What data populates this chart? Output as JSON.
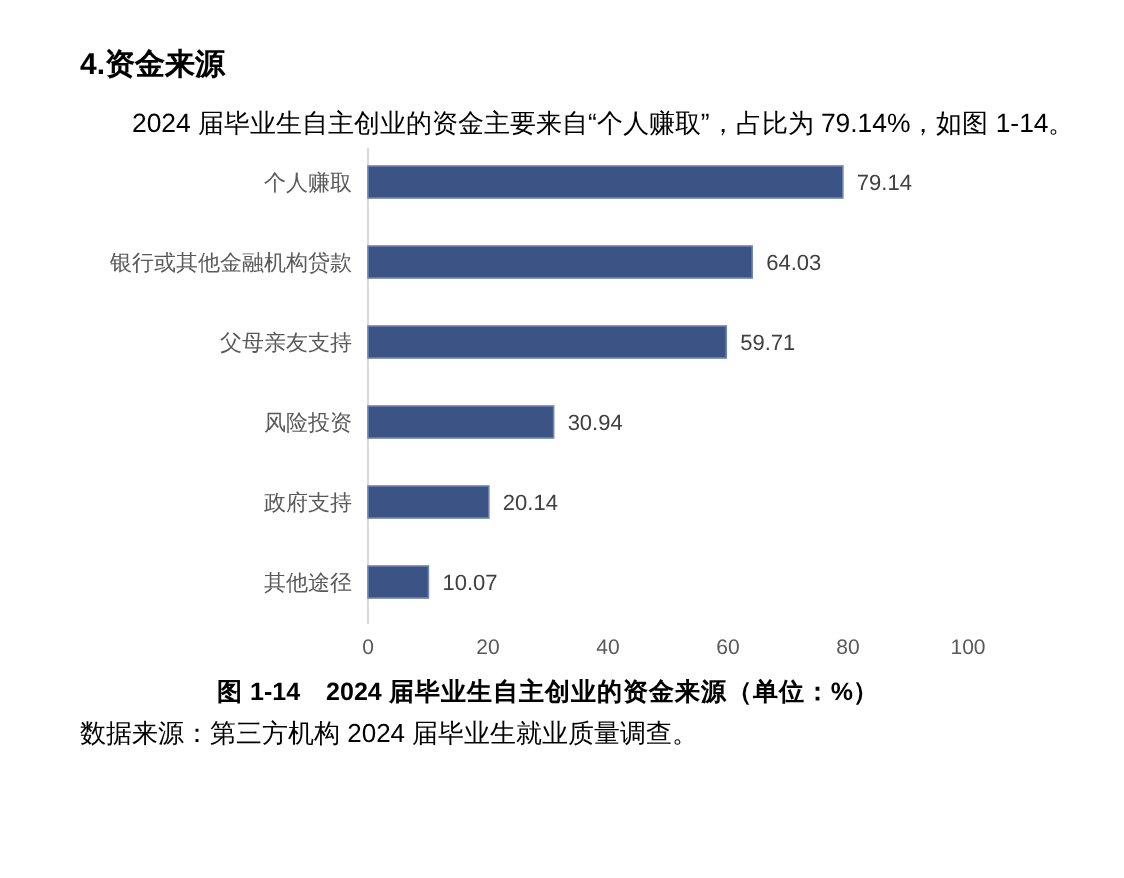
{
  "chart_data": {
    "type": "bar",
    "orientation": "horizontal",
    "title": "4.资金来源",
    "subtitle": "2024 届毕业生自主创业的资金主要来自“个人赚取”，占比为 79.14%，如图 1-14。",
    "annotations": [
      "图 1-14　2024 届毕业生自主创业的资金来源（单位：%）",
      "数据来源：第三方机构 2024 届毕业生就业质量调查。"
    ],
    "categories": [
      "个人赚取",
      "银行或其他金融机构贷款",
      "父母亲友支持",
      "风险投资",
      "政府支持",
      "其他途径"
    ],
    "values": [
      79.14,
      64.03,
      59.71,
      30.94,
      20.14,
      10.07
    ],
    "color": "#3b5485",
    "xlim": [
      0,
      100
    ],
    "xticks": [
      0,
      20,
      40,
      60,
      80,
      100
    ],
    "data_labels": true
  }
}
